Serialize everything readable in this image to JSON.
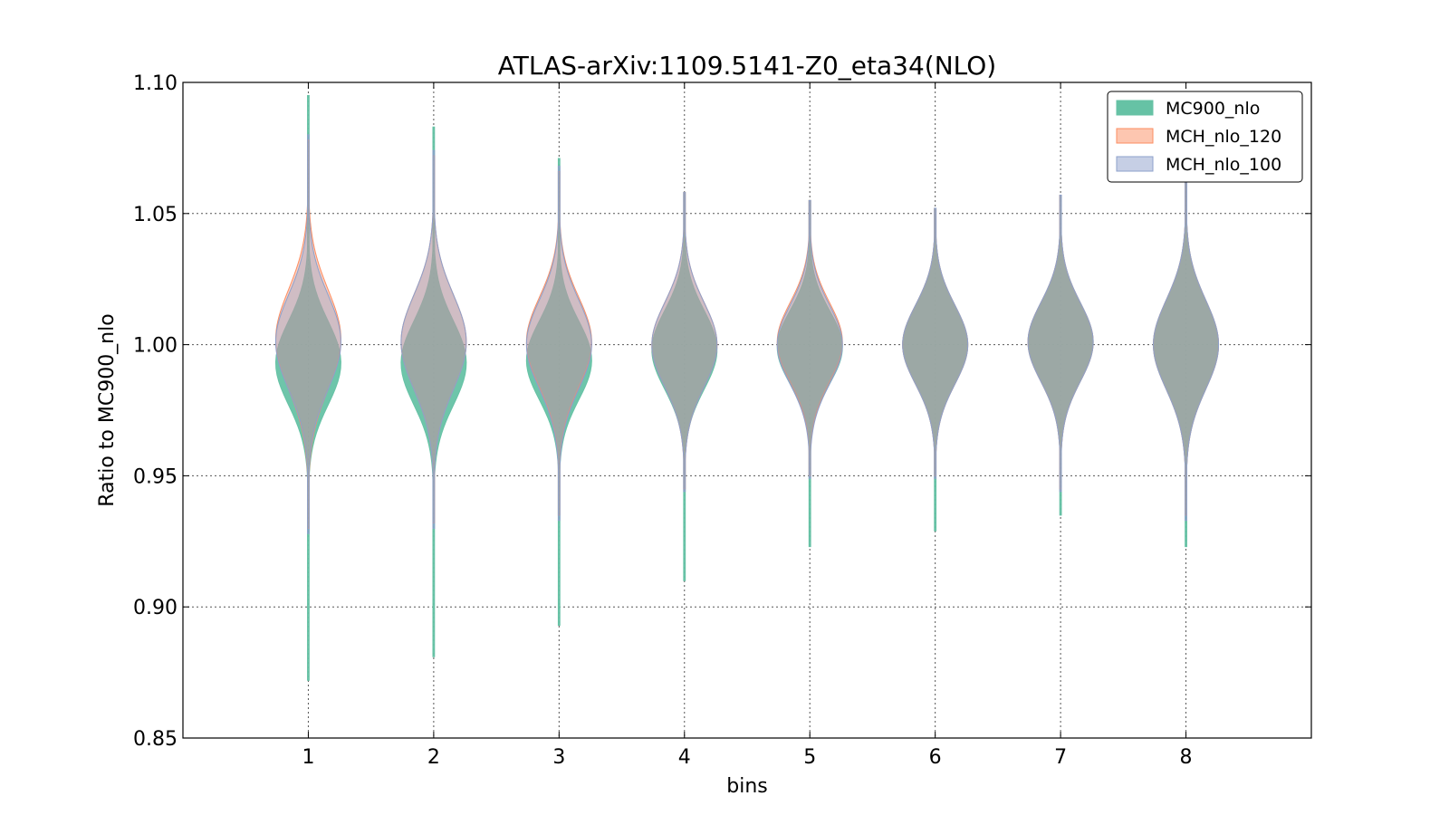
{
  "chart_data": {
    "type": "violin",
    "title": "ATLAS-arXiv:1109.5141-Z0_eta34(NLO)",
    "xlabel": "bins",
    "ylabel": "Ratio to MC900_nlo",
    "categories": [
      "1",
      "2",
      "3",
      "4",
      "5",
      "6",
      "7",
      "8"
    ],
    "x": [
      1,
      2,
      3,
      4,
      5,
      6,
      7,
      8
    ],
    "xlim": [
      0,
      9
    ],
    "ylim": [
      0.85,
      1.1
    ],
    "yticks": [
      0.85,
      0.9,
      0.95,
      1.0,
      1.05,
      1.1
    ],
    "ytick_labels": [
      "0.85",
      "0.90",
      "0.95",
      "1.00",
      "1.05",
      "1.10"
    ],
    "grid": true,
    "legend_position": "top-right",
    "series": [
      {
        "name": "MC900_nlo",
        "color": "#66c2a5",
        "edge_color": "#66c2a5",
        "violins": [
          {
            "min": 0.872,
            "max": 1.095,
            "center": 0.993,
            "spread": 0.016
          },
          {
            "min": 0.881,
            "max": 1.083,
            "center": 0.993,
            "spread": 0.016
          },
          {
            "min": 0.893,
            "max": 1.071,
            "center": 0.994,
            "spread": 0.015
          },
          {
            "min": 0.91,
            "max": 1.058,
            "center": 0.998,
            "spread": 0.015
          },
          {
            "min": 0.923,
            "max": 1.055,
            "center": 0.999,
            "spread": 0.014
          },
          {
            "min": 0.929,
            "max": 1.052,
            "center": 1.0,
            "spread": 0.015
          },
          {
            "min": 0.935,
            "max": 1.057,
            "center": 1.001,
            "spread": 0.015
          },
          {
            "min": 0.923,
            "max": 1.068,
            "center": 1.0,
            "spread": 0.017
          }
        ]
      },
      {
        "name": "MCH_nlo_120",
        "color": "#fc8d62",
        "edge_color": "#fc8d62",
        "violins": [
          {
            "min": 0.93,
            "max": 1.078,
            "center": 1.002,
            "spread": 0.019
          },
          {
            "min": 0.932,
            "max": 1.072,
            "center": 1.001,
            "spread": 0.018
          },
          {
            "min": 0.935,
            "max": 1.066,
            "center": 1.001,
            "spread": 0.017
          },
          {
            "min": 0.945,
            "max": 1.058,
            "center": 1.0,
            "spread": 0.016
          },
          {
            "min": 0.95,
            "max": 1.055,
            "center": 1.001,
            "spread": 0.015
          },
          {
            "min": 0.95,
            "max": 1.052,
            "center": 1.0,
            "spread": 0.015
          },
          {
            "min": 0.945,
            "max": 1.057,
            "center": 1.001,
            "spread": 0.015
          },
          {
            "min": 0.935,
            "max": 1.068,
            "center": 1.0,
            "spread": 0.017
          }
        ]
      },
      {
        "name": "MCH_nlo_100",
        "color": "#8da0cb",
        "edge_color": "#8da0cb",
        "violins": [
          {
            "min": 0.928,
            "max": 1.08,
            "center": 1.001,
            "spread": 0.018
          },
          {
            "min": 0.93,
            "max": 1.074,
            "center": 1.001,
            "spread": 0.018
          },
          {
            "min": 0.933,
            "max": 1.068,
            "center": 1.0,
            "spread": 0.017
          },
          {
            "min": 0.944,
            "max": 1.058,
            "center": 1.0,
            "spread": 0.016
          },
          {
            "min": 0.949,
            "max": 1.055,
            "center": 1.0,
            "spread": 0.015
          },
          {
            "min": 0.949,
            "max": 1.052,
            "center": 1.0,
            "spread": 0.015
          },
          {
            "min": 0.944,
            "max": 1.057,
            "center": 1.001,
            "spread": 0.015
          },
          {
            "min": 0.933,
            "max": 1.068,
            "center": 1.0,
            "spread": 0.017
          }
        ]
      }
    ]
  }
}
